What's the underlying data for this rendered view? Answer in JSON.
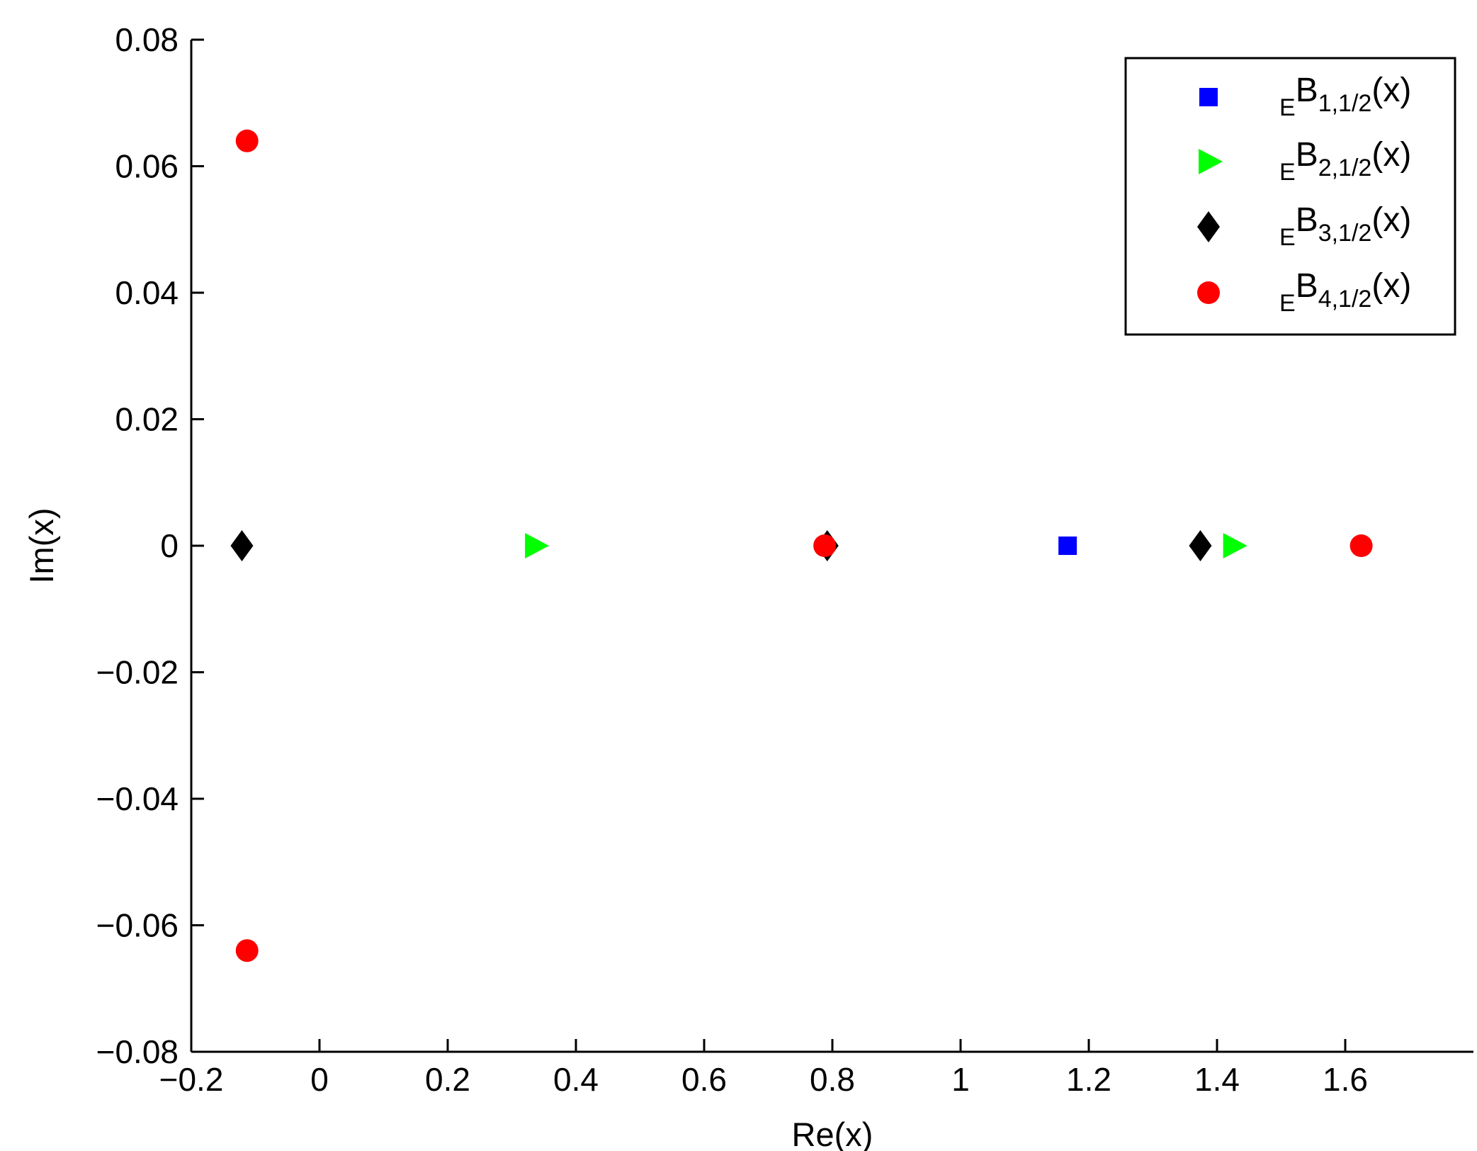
{
  "chart_data": {
    "type": "scatter",
    "title": "",
    "xlabel": "Re(x)",
    "ylabel": "Im(x)",
    "xlim": [
      -0.2,
      1.8
    ],
    "ylim": [
      -0.08,
      0.08
    ],
    "xticks": [
      -0.2,
      0,
      0.2,
      0.4,
      0.6,
      0.8,
      1,
      1.2,
      1.4,
      1.6
    ],
    "xtick_labels": [
      "−0.2",
      "0",
      "0.2",
      "0.4",
      "0.6",
      "0.8",
      "1",
      "1.2",
      "1.4",
      "1.6"
    ],
    "yticks": [
      0.08,
      0.06,
      0.04,
      0.02,
      0,
      -0.02,
      -0.04,
      -0.06,
      -0.08
    ],
    "ytick_labels": [
      "0.08",
      "0.06",
      "0.04",
      "0.02",
      "0",
      "−0.02",
      "−0.04",
      "−0.06",
      "−0.08"
    ],
    "grid": false,
    "legend_position": "top-right",
    "series": [
      {
        "name": "EB1,1/2(x)",
        "legend_pre": "E",
        "legend_main": "B",
        "legend_sub": "1,1/2",
        "legend_post": "(x)",
        "marker": "square",
        "color": "#0000ff",
        "points": [
          [
            1.167,
            0
          ]
        ]
      },
      {
        "name": "EB2,1/2(x)",
        "legend_pre": "E",
        "legend_main": "B",
        "legend_sub": "2,1/2",
        "legend_post": "(x)",
        "marker": "triangle-right",
        "color": "#00ff00",
        "points": [
          [
            0.336,
            0
          ],
          [
            1.425,
            0
          ]
        ]
      },
      {
        "name": "EB3,1/2(x)",
        "legend_pre": "E",
        "legend_main": "B",
        "legend_sub": "3,1/2",
        "legend_post": "(x)",
        "marker": "diamond",
        "color": "#000000",
        "points": [
          [
            -0.121,
            0
          ],
          [
            0.792,
            0
          ],
          [
            1.374,
            0
          ]
        ]
      },
      {
        "name": "EB4,1/2(x)",
        "legend_pre": "E",
        "legend_main": "B",
        "legend_sub": "4,1/2",
        "legend_post": "(x)",
        "marker": "circle",
        "color": "#ff0000",
        "points": [
          [
            -0.113,
            0.064
          ],
          [
            -0.113,
            -0.064
          ],
          [
            0.788,
            0
          ],
          [
            1.625,
            0
          ]
        ]
      }
    ]
  }
}
